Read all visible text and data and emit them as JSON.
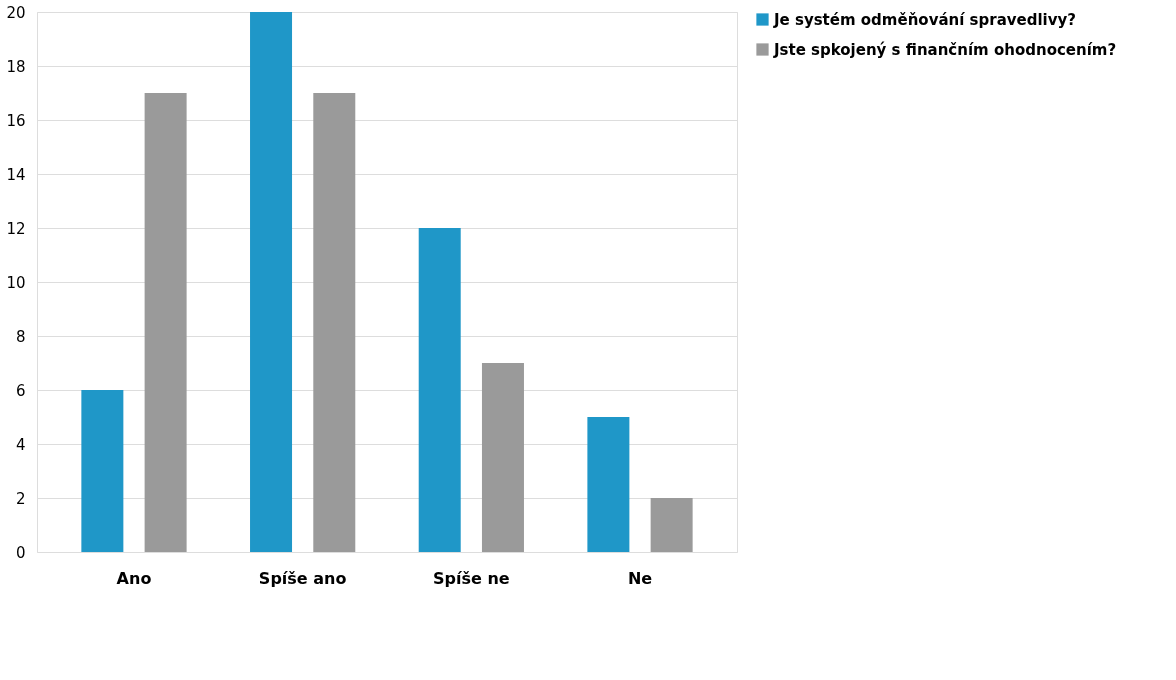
{
  "chart_data": {
    "type": "bar",
    "categories": [
      "Ano",
      "Spíše ano",
      "Spíše ne",
      "Ne"
    ],
    "series": [
      {
        "name": "Je systém odměňování spravedlivy?",
        "color": "#1f97c8",
        "values": [
          6,
          20,
          12,
          5
        ]
      },
      {
        "name": "Jste spkojený s finančním ohodnocením?",
        "color": "#9a9a9a",
        "values": [
          17,
          17,
          7,
          2
        ]
      }
    ],
    "ylim": [
      0,
      20
    ],
    "yticks": [
      0,
      2,
      4,
      6,
      8,
      10,
      12,
      14,
      16,
      18,
      20
    ],
    "grid": "y",
    "legend": "right"
  }
}
